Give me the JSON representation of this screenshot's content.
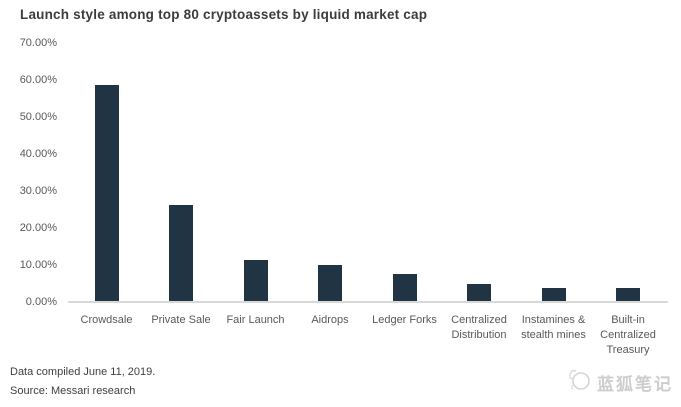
{
  "title": "Launch style among top 80 cryptoassets by liquid market cap",
  "chart_data": {
    "type": "bar",
    "title": "Launch style among top 80 cryptoassets by liquid market cap",
    "categories": [
      "Crowdsale",
      "Private Sale",
      "Fair Launch",
      "Aidrops",
      "Ledger Forks",
      "Centralized\nDistribution",
      "Instamines &\nstealth mines",
      "Built-in\nCentralized\nTreasury"
    ],
    "values": [
      58.75,
      26.25,
      11.25,
      10,
      7.5,
      5,
      3.75,
      3.75
    ],
    "value_unit": "%",
    "xlabel": "",
    "ylabel": "",
    "ylim": [
      0,
      70
    ],
    "ytick_labels": [
      "70.00%",
      "60.00%",
      "50.00%",
      "40.00%",
      "30.00%",
      "20.00%",
      "10.00%",
      "0.00%"
    ],
    "grid": false,
    "legend": false,
    "bar_color": "#203444"
  },
  "footer": {
    "line1": "Data compiled June 11, 2019.",
    "line2": "Source: Messari research"
  },
  "watermark": {
    "text": "蓝狐笔记",
    "icon": "fox-logo"
  },
  "colors": {
    "bar": "#203444",
    "title_text": "#3c3c3c",
    "axis_text": "#595959",
    "axis_line": "#d8d8d8",
    "footer_text": "#3f3f3f",
    "watermark": "#cdcdcd",
    "background": "#ffffff"
  }
}
